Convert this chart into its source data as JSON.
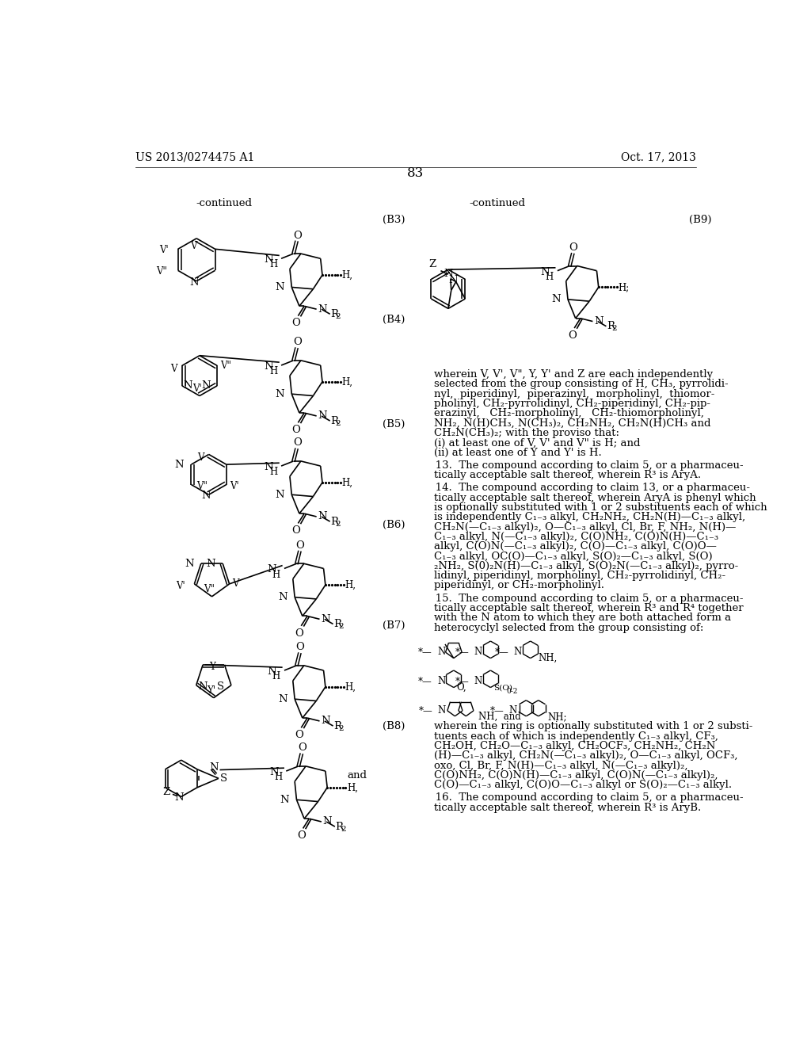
{
  "background_color": "#ffffff",
  "page_number": "83",
  "header_left": "US 2013/0274475 A1",
  "header_right": "Oct. 17, 2013",
  "continued_left": "-continued",
  "continued_right": "-continued",
  "label_B3": "(B3)",
  "label_B4": "(B4)",
  "label_B5": "(B5)",
  "label_B6": "(B6)",
  "label_B7": "(B7)",
  "label_B8": "(B8)",
  "label_B9": "(B9)",
  "text_color": "#000000",
  "line_color": "#000000"
}
